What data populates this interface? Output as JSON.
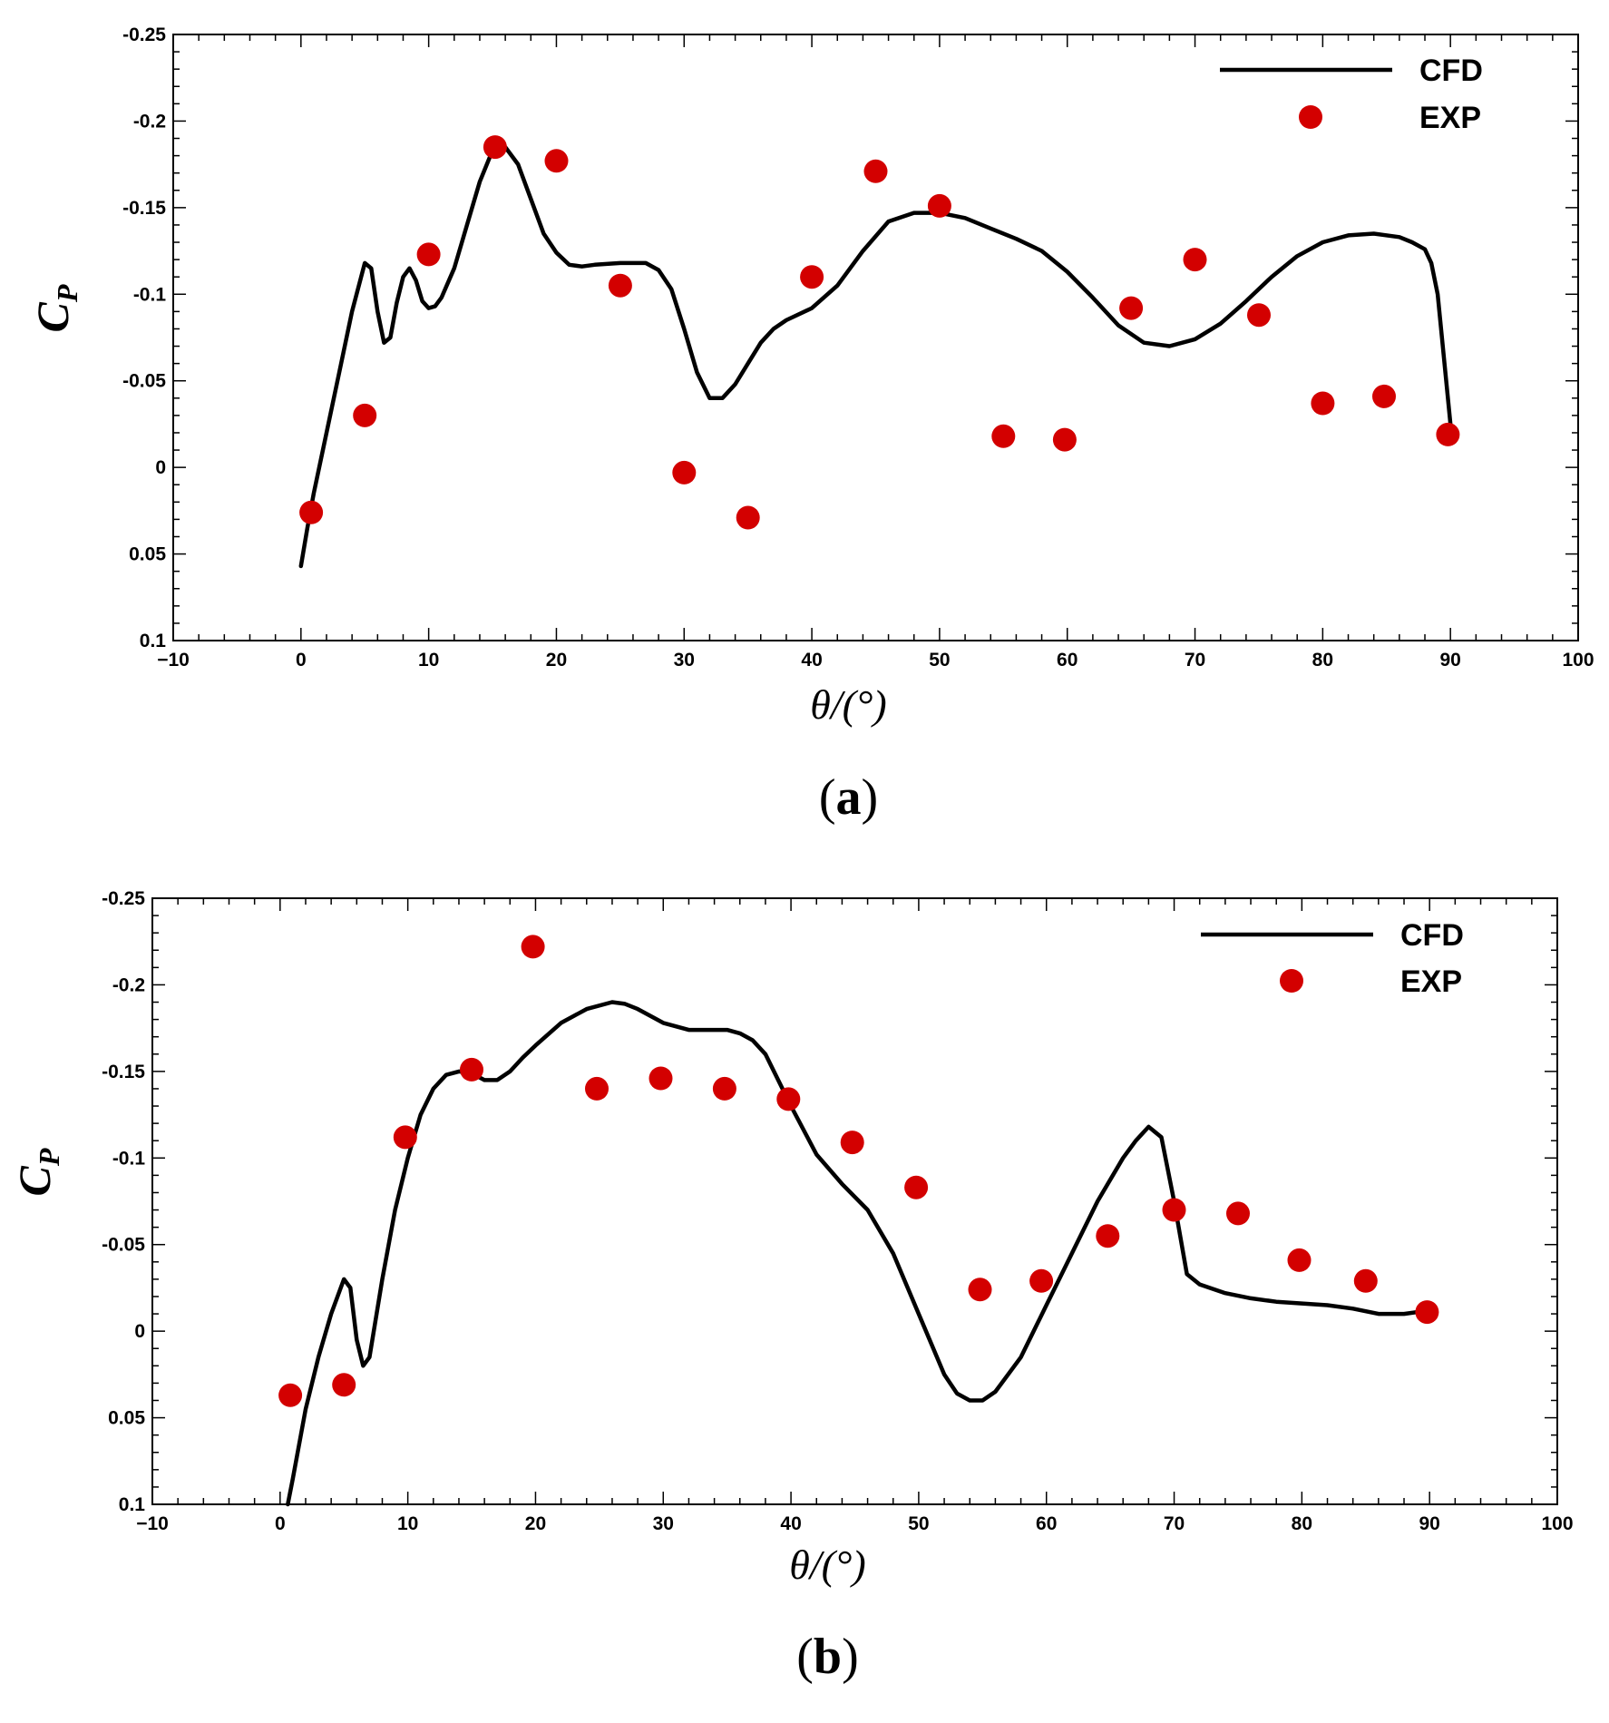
{
  "colors": {
    "cfd_line": "#000000",
    "exp_marker": "#d30000",
    "frame": "#000000"
  },
  "chart_data": [
    {
      "type": "line+scatter",
      "panel_label": "a",
      "xlabel": "θ/(°)",
      "ylabel_main": "C",
      "ylabel_sub": "P",
      "xlim": [
        -10,
        100
      ],
      "ylim": [
        0.1,
        -0.25
      ],
      "y_inverted": true,
      "xticks": [
        -10,
        0,
        10,
        20,
        30,
        40,
        50,
        60,
        70,
        80,
        90,
        100
      ],
      "xtick_labels": [
        "−10",
        "0",
        "10",
        "20",
        "30",
        "40",
        "50",
        "60",
        "70",
        "80",
        "90",
        "100"
      ],
      "yticks": [
        -0.25,
        -0.2,
        -0.15,
        -0.1,
        -0.05,
        0,
        0.05,
        0.1
      ],
      "ytick_labels": [
        "-0.25",
        "-0.2",
        "-0.15",
        "-0.1",
        "-0.05",
        "0",
        "0.05",
        "0.1"
      ],
      "legend": {
        "position": "top-right",
        "line_label": "CFD",
        "marker_label": "EXP"
      },
      "series": [
        {
          "name": "CFD",
          "kind": "line",
          "x": [
            0,
            0.5,
            1,
            2,
            3,
            4,
            5,
            5.5,
            6,
            6.5,
            7,
            7.5,
            8,
            8.5,
            9,
            9.5,
            10,
            10.5,
            11,
            12,
            13,
            14,
            15,
            16,
            17,
            18,
            19,
            20,
            21,
            22,
            23,
            25,
            27,
            28,
            29,
            30,
            31,
            32,
            33,
            34,
            35,
            36,
            37,
            38,
            40,
            42,
            44,
            46,
            48,
            50,
            52,
            54,
            56,
            58,
            60,
            62,
            64,
            66,
            68,
            70,
            72,
            74,
            76,
            78,
            80,
            82,
            84,
            86,
            87,
            88,
            88.5,
            89,
            90
          ],
          "values": [
            0.057,
            0.035,
            0.015,
            -0.02,
            -0.055,
            -0.09,
            -0.118,
            -0.115,
            -0.09,
            -0.072,
            -0.075,
            -0.095,
            -0.11,
            -0.115,
            -0.108,
            -0.096,
            -0.092,
            -0.093,
            -0.098,
            -0.115,
            -0.14,
            -0.165,
            -0.183,
            -0.185,
            -0.175,
            -0.155,
            -0.135,
            -0.124,
            -0.117,
            -0.116,
            -0.117,
            -0.118,
            -0.118,
            -0.114,
            -0.103,
            -0.08,
            -0.055,
            -0.04,
            -0.04,
            -0.048,
            -0.06,
            -0.072,
            -0.08,
            -0.085,
            -0.092,
            -0.105,
            -0.125,
            -0.142,
            -0.147,
            -0.147,
            -0.144,
            -0.138,
            -0.132,
            -0.125,
            -0.113,
            -0.098,
            -0.082,
            -0.072,
            -0.07,
            -0.074,
            -0.083,
            -0.096,
            -0.11,
            -0.122,
            -0.13,
            -0.134,
            -0.135,
            -0.133,
            -0.13,
            -0.126,
            -0.118,
            -0.1,
            -0.025
          ]
        },
        {
          "name": "EXP",
          "kind": "scatter",
          "x": [
            0.8,
            5,
            10,
            15.2,
            20,
            25,
            30,
            35,
            40,
            45,
            50,
            55,
            59.8,
            65,
            70,
            75,
            80,
            84.8,
            89.8
          ],
          "values": [
            0.026,
            -0.03,
            -0.123,
            -0.185,
            -0.177,
            -0.105,
            0.003,
            0.029,
            -0.11,
            -0.171,
            -0.151,
            -0.018,
            -0.016,
            -0.092,
            -0.12,
            -0.088,
            -0.037,
            -0.041,
            -0.019
          ]
        }
      ]
    },
    {
      "type": "line+scatter",
      "panel_label": "b",
      "xlabel": "θ/(°)",
      "ylabel_main": "C",
      "ylabel_sub": "P",
      "xlim": [
        -10,
        100
      ],
      "ylim": [
        0.1,
        -0.25
      ],
      "y_inverted": true,
      "xticks": [
        -10,
        0,
        10,
        20,
        30,
        40,
        50,
        60,
        70,
        80,
        90,
        100
      ],
      "xtick_labels": [
        "−10",
        "0",
        "10",
        "20",
        "30",
        "40",
        "50",
        "60",
        "70",
        "80",
        "90",
        "100"
      ],
      "yticks": [
        -0.25,
        -0.2,
        -0.15,
        -0.1,
        -0.05,
        0,
        0.05,
        0.1
      ],
      "ytick_labels": [
        "-0.25",
        "-0.2",
        "-0.15",
        "-0.1",
        "-0.05",
        "0",
        "0.05",
        "0.1"
      ],
      "legend": {
        "position": "top-right",
        "line_label": "CFD",
        "marker_label": "EXP"
      },
      "series": [
        {
          "name": "CFD",
          "kind": "line",
          "x": [
            0.6,
            1,
            2,
            3,
            4,
            5,
            5.5,
            6,
            6.5,
            7,
            8,
            9,
            10,
            11,
            12,
            13,
            14,
            15,
            16,
            17,
            18,
            19,
            20,
            22,
            24,
            26,
            27,
            28,
            30,
            32,
            34,
            35,
            36,
            37,
            38,
            40,
            42,
            44,
            46,
            48,
            50,
            52,
            53,
            54,
            55,
            56,
            58,
            60,
            62,
            64,
            66,
            67,
            68,
            69,
            70,
            71,
            72,
            74,
            76,
            78,
            80,
            82,
            84,
            86,
            88,
            90
          ],
          "values": [
            0.1,
            0.085,
            0.045,
            0.015,
            -0.01,
            -0.03,
            -0.025,
            0.005,
            0.02,
            0.015,
            -0.03,
            -0.07,
            -0.1,
            -0.125,
            -0.14,
            -0.148,
            -0.15,
            -0.149,
            -0.145,
            -0.145,
            -0.15,
            -0.158,
            -0.165,
            -0.178,
            -0.186,
            -0.19,
            -0.189,
            -0.186,
            -0.178,
            -0.174,
            -0.174,
            -0.174,
            -0.172,
            -0.168,
            -0.16,
            -0.13,
            -0.102,
            -0.085,
            -0.07,
            -0.045,
            -0.01,
            0.025,
            0.036,
            0.04,
            0.04,
            0.035,
            0.015,
            -0.015,
            -0.045,
            -0.075,
            -0.1,
            -0.11,
            -0.118,
            -0.112,
            -0.075,
            -0.033,
            -0.027,
            -0.022,
            -0.019,
            -0.017,
            -0.016,
            -0.015,
            -0.013,
            -0.01,
            -0.01,
            -0.012
          ]
        },
        {
          "name": "EXP",
          "kind": "scatter",
          "x": [
            0.8,
            5,
            9.8,
            15,
            19.8,
            24.8,
            29.8,
            34.8,
            39.8,
            44.8,
            49.8,
            54.8,
            59.6,
            64.8,
            70,
            75,
            79.8,
            85,
            89.8
          ],
          "values": [
            0.037,
            0.031,
            -0.112,
            -0.151,
            -0.222,
            -0.14,
            -0.146,
            -0.14,
            -0.134,
            -0.109,
            -0.083,
            -0.024,
            -0.029,
            -0.055,
            -0.07,
            -0.068,
            -0.041,
            -0.029,
            -0.011
          ]
        }
      ]
    }
  ]
}
